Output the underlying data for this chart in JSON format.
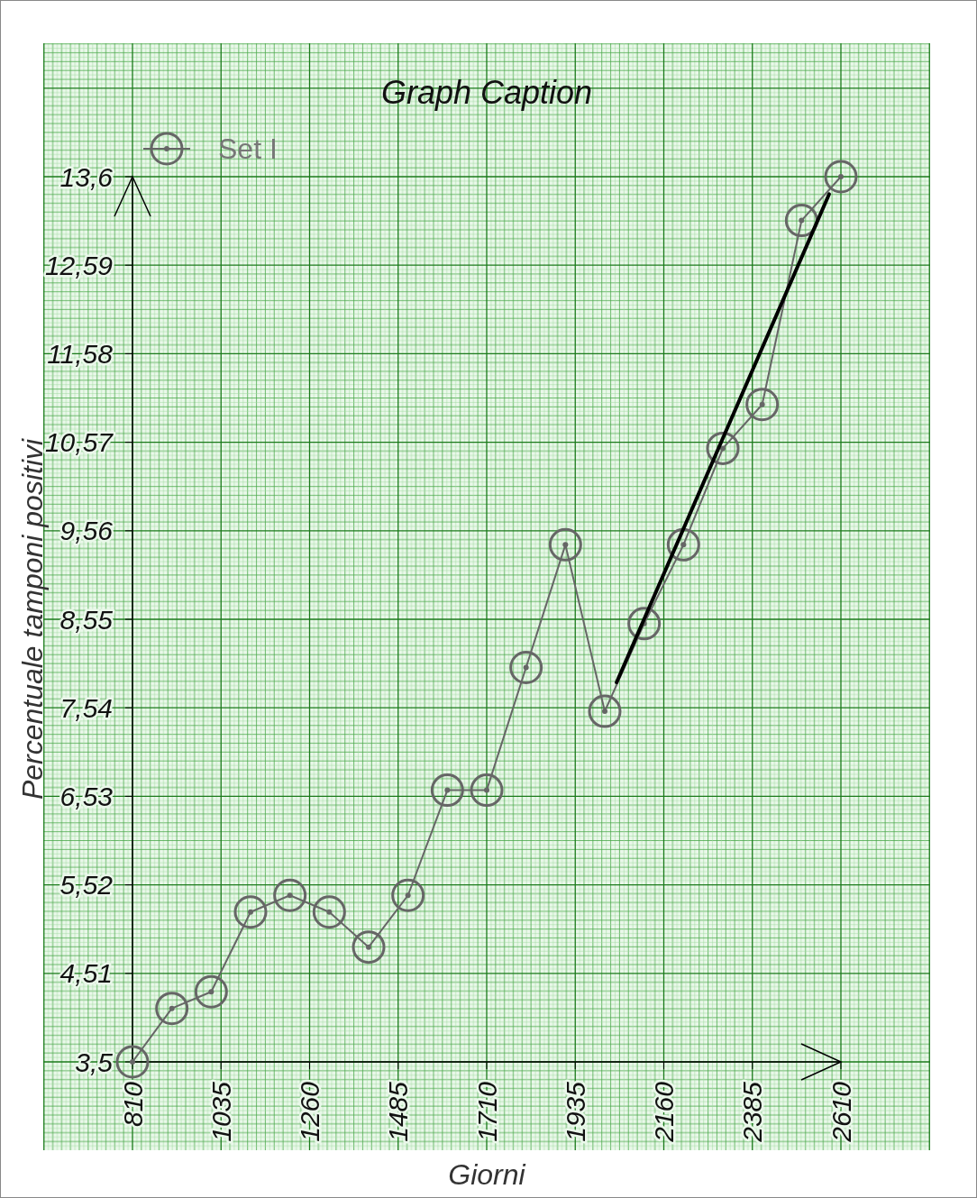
{
  "chart_data": {
    "type": "line",
    "title": "Graph Caption",
    "xlabel": "Giorni",
    "ylabel": "Percentuale tamponi positivi",
    "x": [
      810,
      910,
      1010,
      1110,
      1210,
      1310,
      1410,
      1510,
      1610,
      1710,
      1810,
      1910,
      2010,
      2110,
      2210,
      2310,
      2410,
      2510,
      2610
    ],
    "series": [
      {
        "name": "Set I",
        "color": "#666666",
        "marker": "circle",
        "values": [
          3.5,
          4.11,
          4.3,
          5.21,
          5.4,
          5.21,
          4.81,
          5.4,
          6.6,
          6.6,
          8.0,
          9.4,
          7.5,
          8.5,
          9.4,
          10.5,
          11.0,
          13.1,
          13.6
        ]
      },
      {
        "type": "line",
        "color": "#000000",
        "marker": "none",
        "x": [
          2040,
          2580
        ],
        "values": [
          7.83,
          13.4
        ]
      }
    ],
    "xlim": [
      810,
      2610
    ],
    "ylim": [
      3.5,
      13.6
    ],
    "xticks": [
      810,
      1035,
      1260,
      1485,
      1710,
      1935,
      2160,
      2385,
      2610
    ],
    "yticks": [
      {
        "value": 3.5,
        "label": "3,5"
      },
      {
        "value": 4.51,
        "label": "4,51"
      },
      {
        "value": 5.52,
        "label": "5,52"
      },
      {
        "value": 6.53,
        "label": "6,53"
      },
      {
        "value": 7.54,
        "label": "7,54"
      },
      {
        "value": 8.55,
        "label": "8,55"
      },
      {
        "value": 9.56,
        "label": "9,56"
      },
      {
        "value": 10.57,
        "label": "10,57"
      },
      {
        "value": 11.58,
        "label": "11,58"
      },
      {
        "value": 12.59,
        "label": "12,59"
      },
      {
        "value": 13.6,
        "label": "13,6"
      }
    ],
    "grid": true,
    "legend": "top left",
    "line_style": "solid"
  }
}
